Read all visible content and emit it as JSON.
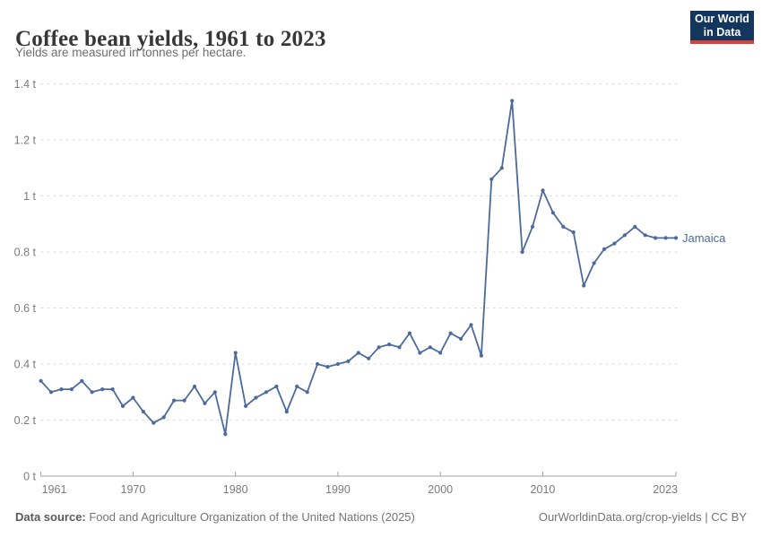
{
  "header": {
    "title": "Coffee bean yields, 1961 to 2023",
    "subtitle": "Yields are measured in tonnes per hectare."
  },
  "logo": {
    "line1": "Our World",
    "line2": "in Data"
  },
  "footer": {
    "source_label": "Data source:",
    "source_text": " Food and Agriculture Organization of the United Nations (2025)",
    "right_text": "OurWorldinData.org/crop-yields | CC BY"
  },
  "colors": {
    "series": "#4c6a9c",
    "gridline": "#dcdcdc",
    "axis": "#a3a3a3",
    "tick_label": "#7b7b7b",
    "logo_navy": "#12365e",
    "logo_red": "#dc3f34"
  },
  "chart_data": {
    "type": "line",
    "title": "Coffee bean yields, 1961 to 2023",
    "subtitle": "Yields are measured in tonnes per hectare.",
    "unit": "t",
    "xlim": [
      1961,
      2023
    ],
    "ylim": [
      0,
      1.4
    ],
    "grid": "horizontal-dashed",
    "legend_position": "end-of-line",
    "y_ticks": [
      {
        "v": 0,
        "label": "0 t"
      },
      {
        "v": 0.2,
        "label": "0.2 t"
      },
      {
        "v": 0.4,
        "label": "0.4 t"
      },
      {
        "v": 0.6,
        "label": "0.6 t"
      },
      {
        "v": 0.8,
        "label": "0.8 t"
      },
      {
        "v": 1,
        "label": "1 t"
      },
      {
        "v": 1.2,
        "label": "1.2 t"
      },
      {
        "v": 1.4,
        "label": "1.4 t"
      }
    ],
    "x_ticks": [
      {
        "year": 1961,
        "label": "1961",
        "align": "start"
      },
      {
        "year": 1970,
        "label": "1970",
        "align": "middle"
      },
      {
        "year": 1980,
        "label": "1980",
        "align": "middle"
      },
      {
        "year": 1990,
        "label": "1990",
        "align": "middle"
      },
      {
        "year": 2000,
        "label": "2000",
        "align": "middle"
      },
      {
        "year": 2010,
        "label": "2010",
        "align": "middle"
      },
      {
        "year": 2023,
        "label": "2023",
        "align": "end"
      }
    ],
    "series": [
      {
        "name": "Jamaica",
        "color": "#4c6a9c",
        "x": [
          1961,
          1962,
          1963,
          1964,
          1965,
          1966,
          1967,
          1968,
          1969,
          1970,
          1971,
          1972,
          1973,
          1974,
          1975,
          1976,
          1977,
          1978,
          1979,
          1980,
          1981,
          1982,
          1983,
          1984,
          1985,
          1986,
          1987,
          1988,
          1989,
          1990,
          1991,
          1992,
          1993,
          1994,
          1995,
          1996,
          1997,
          1998,
          1999,
          2000,
          2001,
          2002,
          2003,
          2004,
          2005,
          2006,
          2007,
          2008,
          2009,
          2010,
          2011,
          2012,
          2013,
          2014,
          2015,
          2016,
          2017,
          2018,
          2019,
          2020,
          2021,
          2022,
          2023
        ],
        "values": [
          0.34,
          0.3,
          0.31,
          0.31,
          0.34,
          0.3,
          0.31,
          0.31,
          0.25,
          0.28,
          0.23,
          0.19,
          0.21,
          0.27,
          0.27,
          0.32,
          0.26,
          0.3,
          0.15,
          0.44,
          0.25,
          0.28,
          0.3,
          0.32,
          0.23,
          0.32,
          0.3,
          0.4,
          0.39,
          0.4,
          0.41,
          0.44,
          0.42,
          0.46,
          0.47,
          0.46,
          0.51,
          0.44,
          0.46,
          0.44,
          0.51,
          0.49,
          0.54,
          0.43,
          1.06,
          1.1,
          1.34,
          0.8,
          0.89,
          1.02,
          0.94,
          0.89,
          0.87,
          0.68,
          0.76,
          0.81,
          0.83,
          0.86,
          0.89,
          0.86,
          0.85,
          0.85,
          0.85
        ]
      }
    ]
  }
}
